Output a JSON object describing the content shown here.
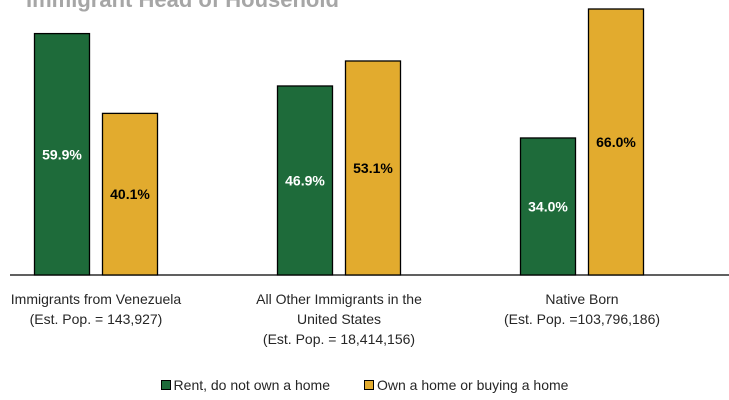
{
  "chart_data": {
    "type": "bar",
    "title": "Immigrant Head of Household",
    "categories": [
      [
        "Immigrants from Venezuela",
        "(Est. Pop. = 143,927)"
      ],
      [
        "All Other Immigrants in the",
        "United States",
        "(Est. Pop. = 18,414,156)"
      ],
      [
        "Native Born",
        "(Est. Pop. =103,796,186)"
      ]
    ],
    "series": [
      {
        "name": "Rent, do not own a home",
        "values": [
          59.9,
          46.9,
          34.0
        ],
        "labels": [
          "59.9%",
          "46.9%",
          "34.0%"
        ],
        "color": "#1e6b3a",
        "label_color": "#ffffff"
      },
      {
        "name": "Own a home or buying a home",
        "values": [
          40.1,
          53.1,
          66.0
        ],
        "labels": [
          "40.1%",
          "53.1%",
          "66.0%"
        ],
        "color": "#e2ab2e",
        "label_color": "#000000"
      }
    ],
    "ylim": [
      0,
      66
    ],
    "grid": false,
    "legend_position": "bottom"
  }
}
